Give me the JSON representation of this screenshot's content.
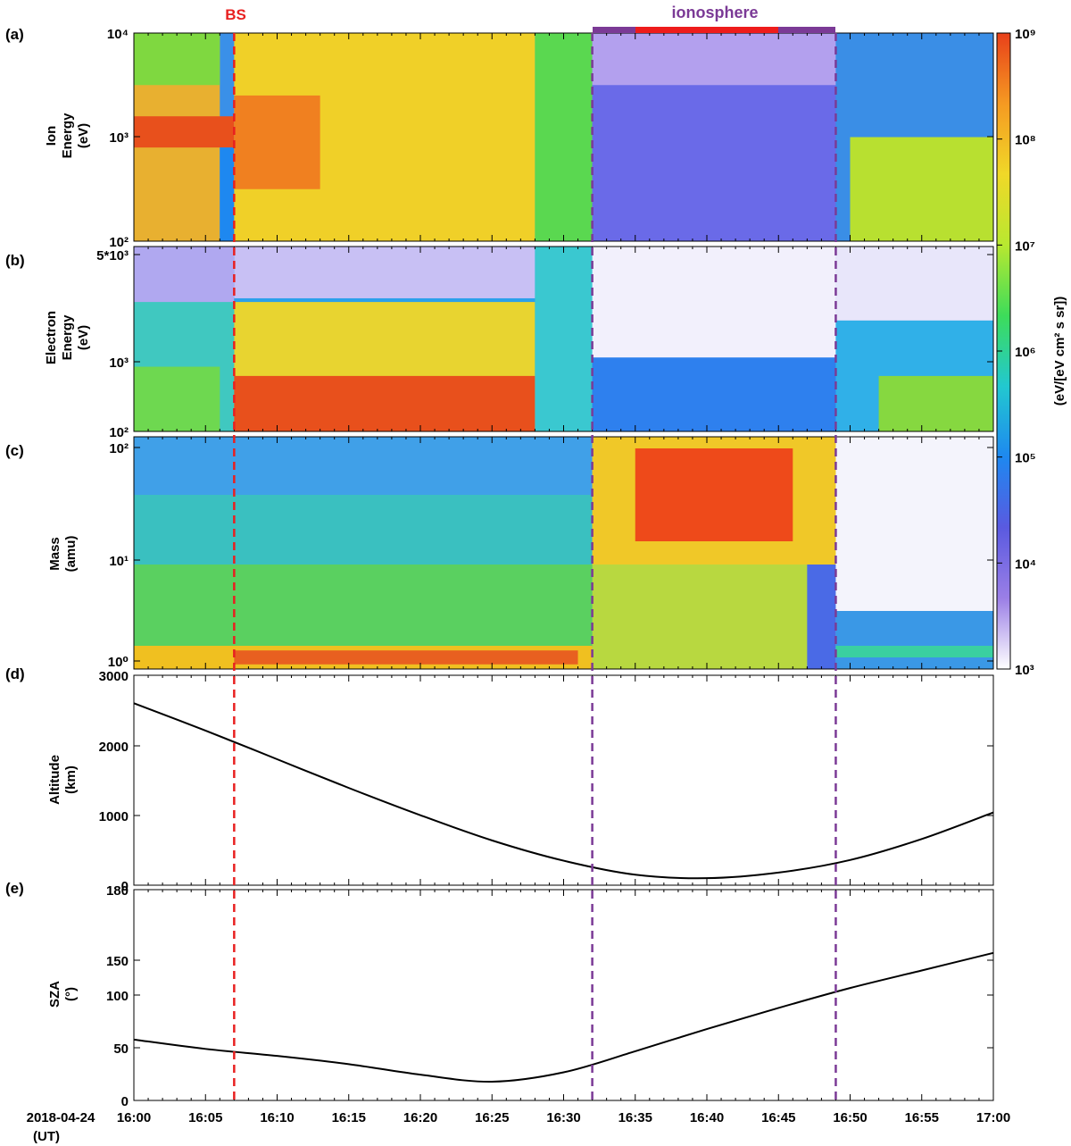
{
  "header": {
    "bs_label": "BS",
    "ionosphere_label": "ionosphere",
    "date_label": "2018-04-24",
    "ut_label": "(UT)"
  },
  "panels": {
    "a": {
      "tag": "(a)",
      "ylabel": [
        "Ion",
        "Energy",
        "(eV)"
      ]
    },
    "b": {
      "tag": "(b)",
      "ylabel": [
        "Electron",
        "Energy",
        "(eV)"
      ]
    },
    "c": {
      "tag": "(c)",
      "ylabel": [
        "Mass",
        "(amu)"
      ]
    },
    "d": {
      "tag": "(d)",
      "ylabel": [
        "Altitude",
        "(km)"
      ]
    },
    "e": {
      "tag": "(e)",
      "ylabel": [
        "SZA",
        "(°)"
      ]
    }
  },
  "colorbar": {
    "label": "(eV/[eV cm² s sr])",
    "ticks": [
      "10⁹",
      "10⁸",
      "10⁷",
      "10⁶",
      "10⁵",
      "10⁴",
      "10³"
    ],
    "scale": "log",
    "range": [
      1000,
      1000000000
    ],
    "colors": [
      "#ffffff",
      "#9b7fe6",
      "#5a5ae0",
      "#1e88f0",
      "#22c8d0",
      "#3ddc5a",
      "#b8e830",
      "#f0d828",
      "#f59a22",
      "#e8401a"
    ]
  },
  "colors": {
    "bs_line": "#e82020",
    "ionosphere_line": "#7b3a96",
    "ionosphere_bar": "#7b3a96",
    "ionosphere_core_bar": "#ee1c1c"
  },
  "chart_data": [
    {
      "type": "heatmap",
      "panel": "a",
      "ylabel": "Ion Energy (eV)",
      "yscale": "log",
      "ylim": [
        100,
        10000
      ],
      "ytick_labels": [
        "10⁴",
        "10³",
        "10²"
      ],
      "xlim": [
        "16:00",
        "17:00"
      ]
    },
    {
      "type": "heatmap",
      "panel": "b",
      "ylabel": "Electron Energy (eV)",
      "yscale": "log",
      "ylim": [
        100,
        5000
      ],
      "ytick_labels": [
        "5*10³",
        "10³",
        "10²"
      ],
      "xlim": [
        "16:00",
        "17:00"
      ]
    },
    {
      "type": "heatmap",
      "panel": "c",
      "ylabel": "Mass (amu)",
      "yscale": "log",
      "ylim": [
        0.7,
        140
      ],
      "ytick_labels": [
        "10²",
        "10¹",
        "10⁰"
      ],
      "xlim": [
        "16:00",
        "17:00"
      ]
    },
    {
      "type": "line",
      "panel": "d",
      "ylabel": "Altitude (km)",
      "ylim": [
        0,
        3000
      ],
      "ytick_labels": [
        "3000",
        "2000",
        "1000",
        "0"
      ],
      "x": [
        "16:00",
        "16:05",
        "16:10",
        "16:15",
        "16:20",
        "16:25",
        "16:30",
        "16:35",
        "16:40",
        "16:45",
        "16:50",
        "16:55",
        "17:00"
      ],
      "y": [
        2600,
        2210,
        1800,
        1390,
        1000,
        640,
        350,
        150,
        100,
        180,
        360,
        660,
        1040
      ]
    },
    {
      "type": "line",
      "panel": "e",
      "ylabel": "SZA (°)",
      "ylim": [
        0,
        180
      ],
      "ytick_labels": [
        "180",
        "150",
        "100",
        "50",
        "0"
      ],
      "x": [
        "16:00",
        "16:05",
        "16:10",
        "16:15",
        "16:20",
        "16:25",
        "16:30",
        "16:35",
        "16:40",
        "16:45",
        "16:50",
        "16:55",
        "17:00"
      ],
      "y": [
        52,
        44,
        38,
        31,
        22,
        16,
        24,
        42,
        61,
        79,
        96,
        111,
        126
      ]
    }
  ],
  "x_axis": {
    "tick_labels": [
      "16:00",
      "16:05",
      "16:10",
      "16:15",
      "16:20",
      "16:25",
      "16:30",
      "16:35",
      "16:40",
      "16:45",
      "16:50",
      "16:55",
      "17:00"
    ]
  },
  "markers": {
    "bs_time": "16:07",
    "ionosphere_entry": "16:32",
    "ionosphere_exit": "16:49",
    "ionosphere_core_start": "16:35",
    "ionosphere_core_end": "16:45"
  }
}
